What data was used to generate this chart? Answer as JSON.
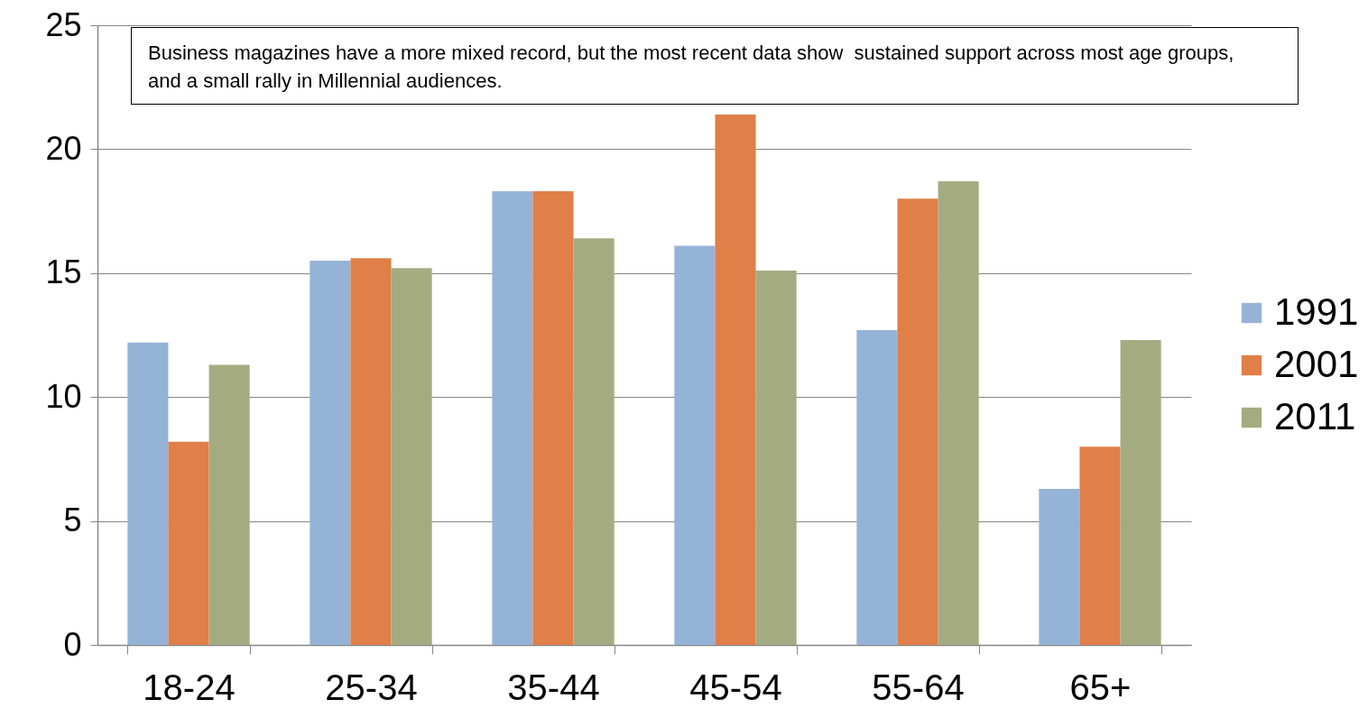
{
  "chart_data": {
    "type": "bar",
    "categories": [
      "18-24",
      "25-34",
      "35-44",
      "45-54",
      "55-64",
      "65+"
    ],
    "series": [
      {
        "name": "1991",
        "color": "#95b3d7",
        "values": [
          12.2,
          15.5,
          18.3,
          16.1,
          12.7,
          6.3
        ]
      },
      {
        "name": "2001",
        "color": "#e07f47",
        "values": [
          8.2,
          15.6,
          18.3,
          21.4,
          18.0,
          8.0
        ]
      },
      {
        "name": "2011",
        "color": "#a5ab81",
        "values": [
          11.3,
          15.2,
          16.4,
          15.1,
          18.7,
          12.3
        ]
      }
    ],
    "ylim": [
      0,
      25
    ],
    "yticks": [
      0,
      5,
      10,
      15,
      20,
      25
    ],
    "grid": "y",
    "legend": "right",
    "annotations": [
      "Business magazines have a more mixed record, but the most recent data show  sustained support across most age groups, and a small rally in Millennial audiences."
    ]
  }
}
